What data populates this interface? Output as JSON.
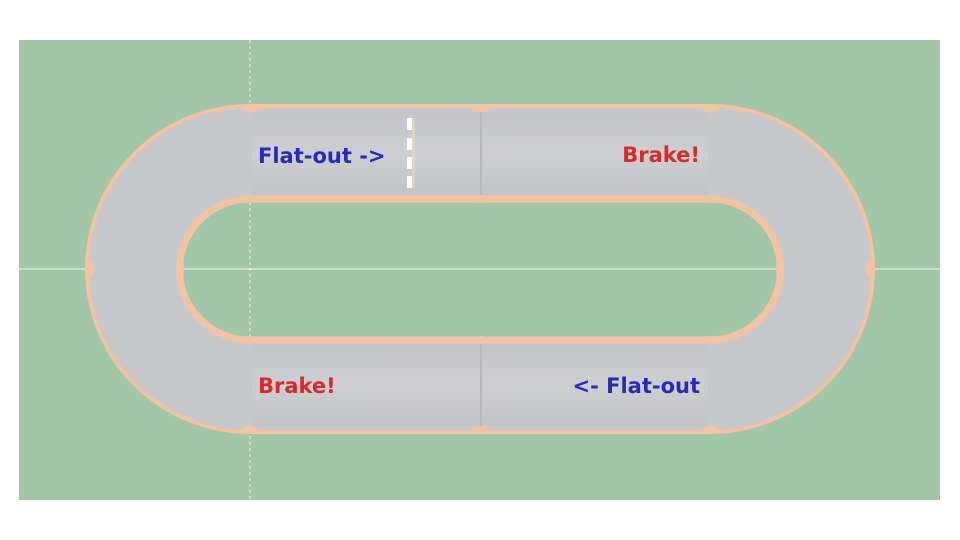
{
  "scene": {
    "colors": {
      "grass": "#a4c6a8",
      "asphalt": "#c8c9cc",
      "asphalt_dark": "#b4b5b9",
      "curb": "#f2c3a4",
      "background": "#ffffff"
    },
    "labels": {
      "top_left": {
        "text": "Flat-out ->",
        "color": "#2929b8"
      },
      "top_right": {
        "text": "Brake!",
        "color": "#d62b2b"
      },
      "bottom_left": {
        "text": "Brake!",
        "color": "#d62b2b"
      },
      "bottom_right": {
        "text": "<- Flat-out",
        "color": "#2929b8"
      }
    },
    "start_finish_line": {
      "style": "dashed-white"
    }
  }
}
